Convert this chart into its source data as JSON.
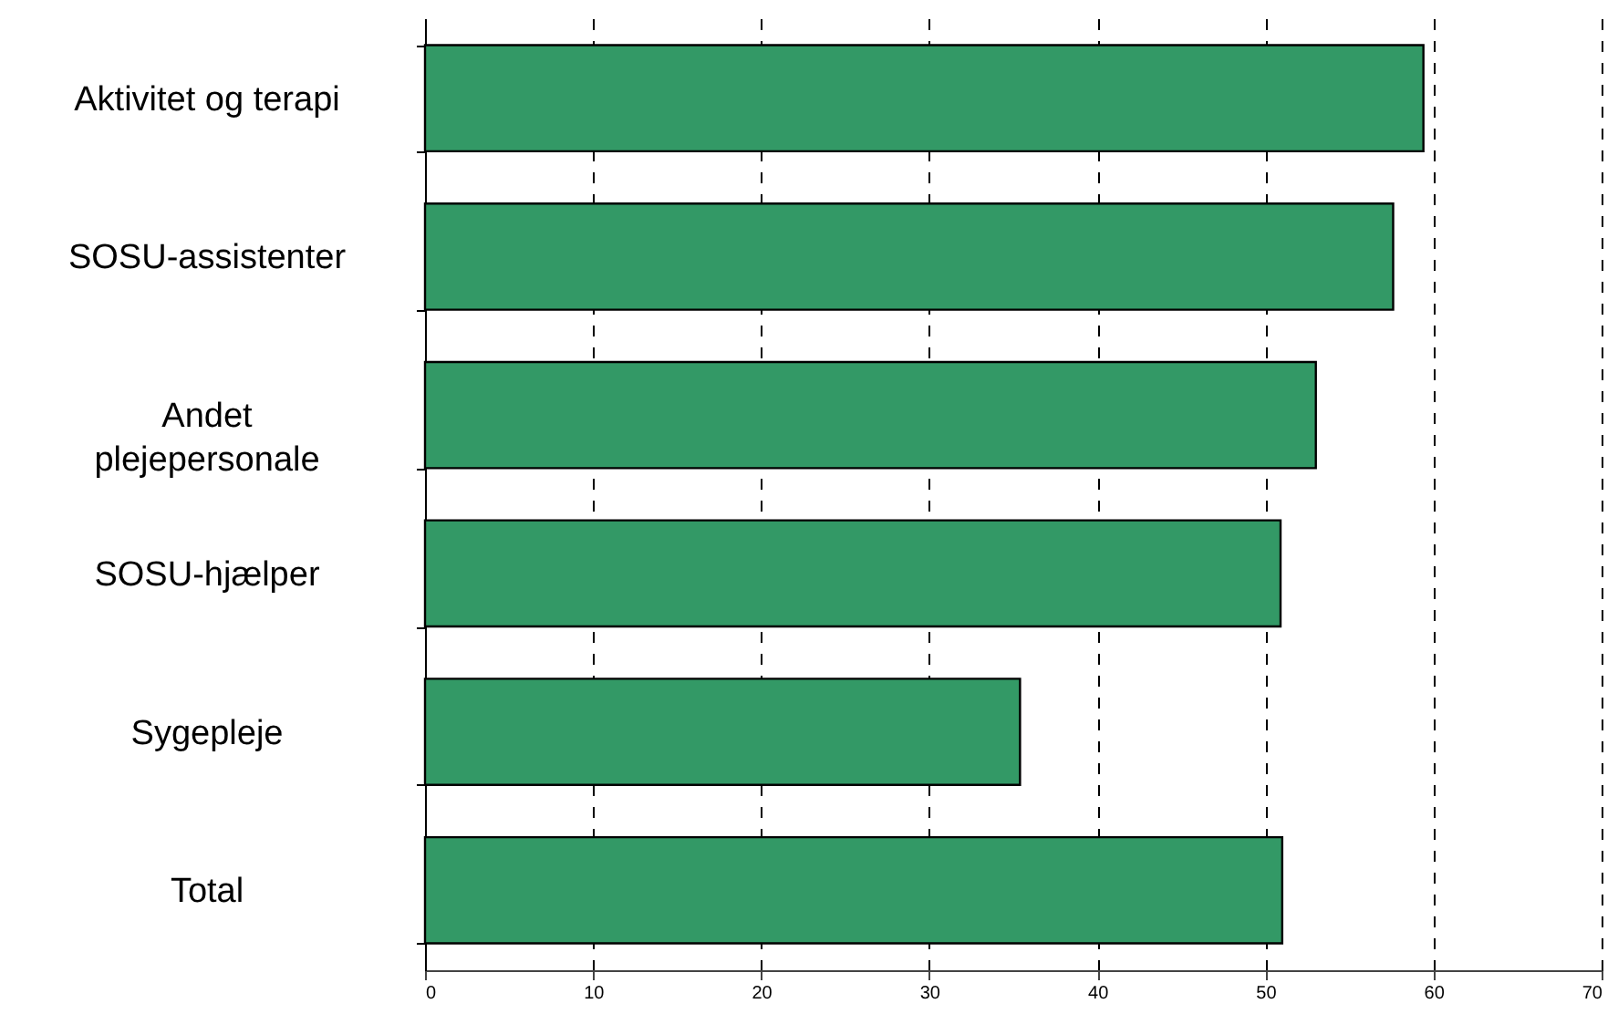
{
  "chart_data": {
    "type": "bar",
    "orientation": "horizontal",
    "categories": [
      "Aktivitet og terapi",
      "SOSU-assistenter",
      "Andet plejepersonale",
      "SOSU-hjælper",
      "Sygepleje",
      "Total"
    ],
    "values": [
      59.4,
      57.6,
      53.0,
      50.9,
      35.4,
      51.0
    ],
    "color": "#339966",
    "xlim": [
      0,
      70
    ],
    "xticks": [
      0,
      10,
      20,
      30,
      40,
      50,
      60,
      70
    ],
    "grid": "x"
  }
}
